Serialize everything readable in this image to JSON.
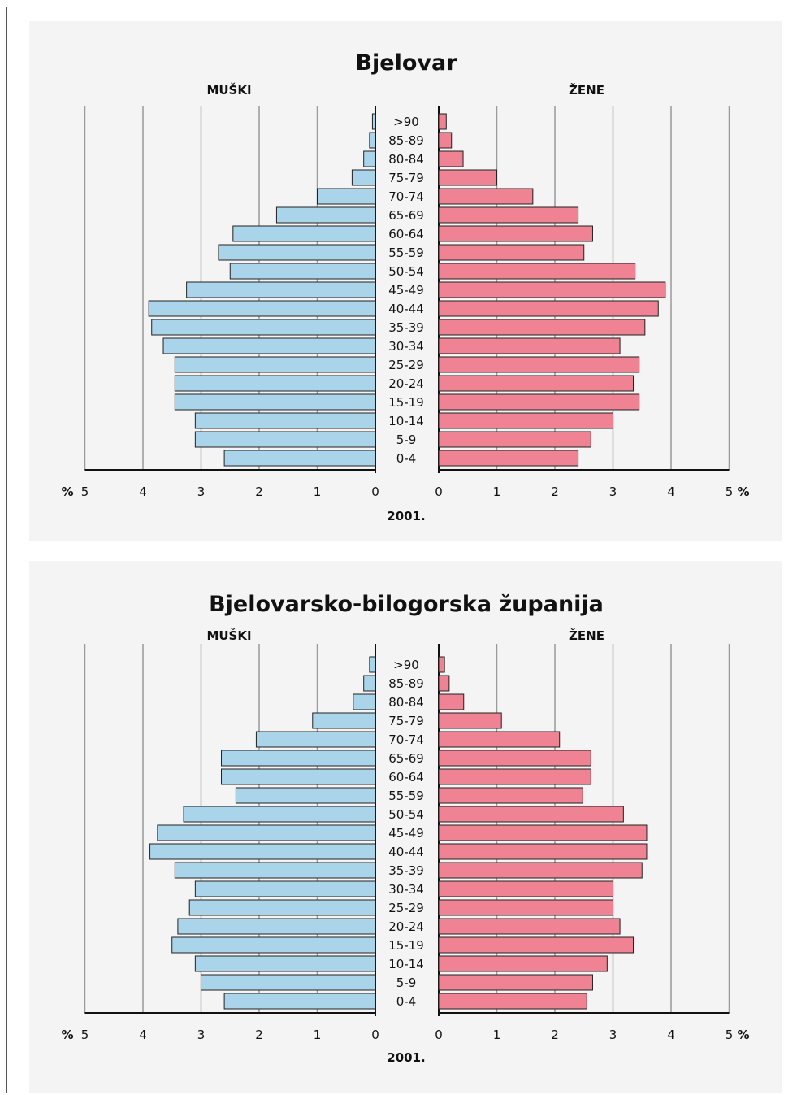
{
  "chart_data": [
    {
      "type": "bar",
      "title": "Bjelovar",
      "left_label": "MUŠKI",
      "right_label": "ŽENE",
      "xlabel": "2001.",
      "unit": "%",
      "xlim": [
        0,
        5
      ],
      "ticks": [
        "5",
        "4",
        "3",
        "2",
        "1",
        "0"
      ],
      "categories": [
        ">90",
        "85-89",
        "80-84",
        "75-79",
        "70-74",
        "65-69",
        "60-64",
        "55-59",
        "50-54",
        "45-49",
        "40-44",
        "35-39",
        "30-34",
        "25-29",
        "20-24",
        "15-19",
        "10-14",
        "5-9",
        "0-4"
      ],
      "series": [
        {
          "name": "MUŠKI",
          "values": [
            0.05,
            0.1,
            0.2,
            0.4,
            1.0,
            1.7,
            2.45,
            2.7,
            2.5,
            3.25,
            3.9,
            3.85,
            3.65,
            3.45,
            3.45,
            3.45,
            3.1,
            3.1,
            2.6
          ]
        },
        {
          "name": "ŽENE",
          "values": [
            0.13,
            0.22,
            0.42,
            1.0,
            1.62,
            2.4,
            2.65,
            2.5,
            3.38,
            3.9,
            3.78,
            3.55,
            3.12,
            3.45,
            3.35,
            3.45,
            3.0,
            2.62,
            2.4
          ]
        }
      ],
      "colors": {
        "male": "#a9d4ea",
        "female": "#ef8293",
        "grid": "#9a9a9a"
      }
    },
    {
      "type": "bar",
      "title": "Bjelovarsko-bilogorska županija",
      "left_label": "MUŠKI",
      "right_label": "ŽENE",
      "xlabel": "2001.",
      "unit": "%",
      "xlim": [
        0,
        5
      ],
      "ticks": [
        "5",
        "4",
        "3",
        "2",
        "1",
        "0"
      ],
      "categories": [
        ">90",
        "85-89",
        "80-84",
        "75-79",
        "70-74",
        "65-69",
        "60-64",
        "55-59",
        "50-54",
        "45-49",
        "40-44",
        "35-39",
        "30-34",
        "25-29",
        "20-24",
        "15-19",
        "10-14",
        "5-9",
        "0-4"
      ],
      "series": [
        {
          "name": "MUŠKI",
          "values": [
            0.1,
            0.2,
            0.38,
            1.08,
            2.05,
            2.65,
            2.65,
            2.4,
            3.3,
            3.75,
            3.88,
            3.45,
            3.1,
            3.2,
            3.4,
            3.5,
            3.1,
            3.0,
            2.6
          ]
        },
        {
          "name": "ŽENE",
          "values": [
            0.1,
            0.18,
            0.43,
            1.08,
            2.08,
            2.62,
            2.62,
            2.48,
            3.18,
            3.58,
            3.58,
            3.5,
            3.0,
            3.0,
            3.12,
            3.35,
            2.9,
            2.65,
            2.55
          ]
        }
      ],
      "colors": {
        "male": "#a9d4ea",
        "female": "#ef8293",
        "grid": "#9a9a9a"
      }
    }
  ]
}
